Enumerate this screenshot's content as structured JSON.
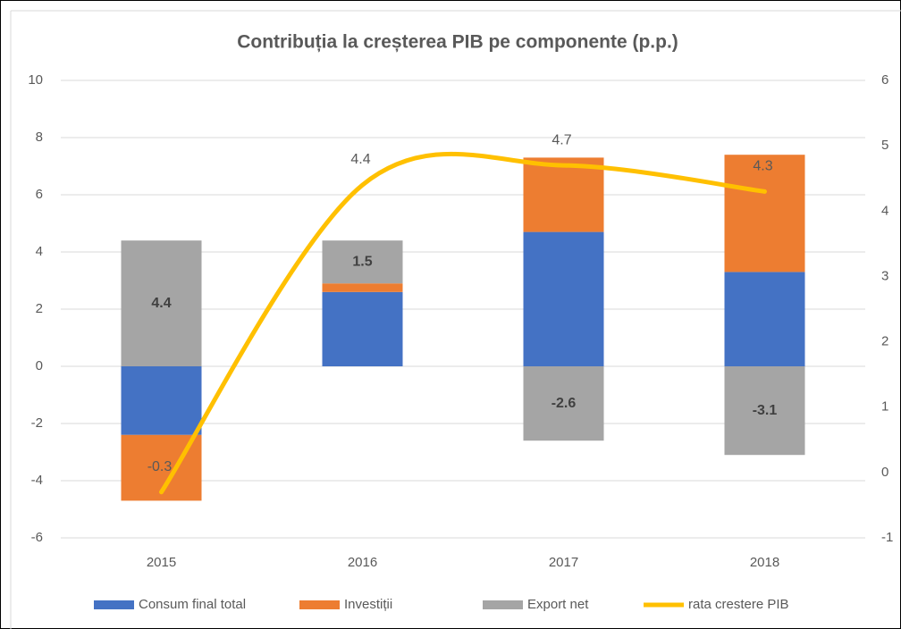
{
  "chart_data": {
    "type": "bar",
    "title": "Contribuția la creșterea PIB pe componente (p.p.)",
    "categories": [
      "2015",
      "2016",
      "2017",
      "2018"
    ],
    "series": [
      {
        "name": "Consum final total",
        "color": "#4472c4",
        "values": [
          -2.4,
          2.6,
          4.7,
          3.3
        ]
      },
      {
        "name": "Investiții",
        "color": "#ed7d31",
        "values": [
          -2.3,
          0.3,
          2.6,
          4.1
        ]
      },
      {
        "name": "Export net",
        "color": "#a5a5a5",
        "values": [
          4.4,
          1.5,
          -2.6,
          -3.1
        ],
        "data_labels": true
      },
      {
        "name": "rata crestere PIB",
        "color": "#ffc000",
        "type": "line",
        "axis": "y2",
        "smooth": true,
        "values": [
          -0.3,
          4.4,
          4.7,
          4.3
        ],
        "data_labels": true
      }
    ],
    "stacked": true,
    "ylim": [
      -6,
      10
    ],
    "yticks": [
      -6,
      -4,
      -2,
      0,
      2,
      4,
      6,
      8,
      10
    ],
    "y2lim": [
      -1,
      6
    ],
    "y2ticks": [
      -1,
      0,
      1,
      2,
      3,
      4,
      5,
      6
    ],
    "grid": true,
    "legend": "bottom"
  }
}
